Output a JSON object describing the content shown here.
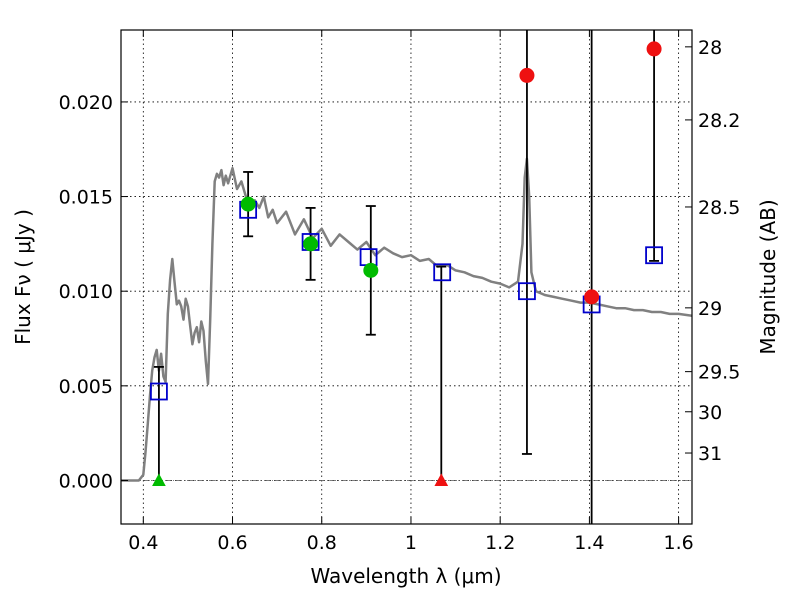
{
  "chart_data": {
    "type": "scatter",
    "xlabel": "Wavelength  λ (μm)",
    "ylabel": "Flux  Fν  ( μJy )",
    "ylabel_right": "Magnitude (AB)",
    "xlim": [
      0.35,
      1.63
    ],
    "ylim": [
      -0.0023,
      0.0238
    ],
    "grid": true,
    "x_ticks": [
      {
        "value": 0.4,
        "label": "0.4"
      },
      {
        "value": 0.6,
        "label": "0.6"
      },
      {
        "value": 0.8,
        "label": "0.8"
      },
      {
        "value": 1.0,
        "label": "1"
      },
      {
        "value": 1.2,
        "label": "1.2"
      },
      {
        "value": 1.4,
        "label": "1.4"
      },
      {
        "value": 1.6,
        "label": "1.6"
      }
    ],
    "y_ticks": [
      {
        "value": 0.0,
        "label": "0.000"
      },
      {
        "value": 0.005,
        "label": "0.005"
      },
      {
        "value": 0.01,
        "label": "0.010"
      },
      {
        "value": 0.015,
        "label": "0.015"
      },
      {
        "value": 0.02,
        "label": "0.020"
      }
    ],
    "right_ticks": [
      {
        "label": "28",
        "flux": 0.02291
      },
      {
        "label": "28.2",
        "flux": 0.01905
      },
      {
        "label": "28.5",
        "flux": 0.01445
      },
      {
        "label": "29",
        "flux": 0.00912
      },
      {
        "label": "29.5",
        "flux": 0.00575
      },
      {
        "label": "30",
        "flux": 0.00363
      },
      {
        "label": "31",
        "flux": 0.00145
      }
    ],
    "model_sed": {
      "color": "#808080",
      "x": [
        0.35,
        0.39,
        0.4,
        0.405,
        0.41,
        0.415,
        0.42,
        0.425,
        0.43,
        0.435,
        0.44,
        0.445,
        0.45,
        0.455,
        0.46,
        0.465,
        0.47,
        0.475,
        0.48,
        0.485,
        0.49,
        0.495,
        0.5,
        0.505,
        0.51,
        0.515,
        0.52,
        0.525,
        0.53,
        0.535,
        0.54,
        0.545,
        0.55,
        0.555,
        0.56,
        0.565,
        0.57,
        0.575,
        0.58,
        0.585,
        0.59,
        0.6,
        0.61,
        0.62,
        0.63,
        0.64,
        0.65,
        0.66,
        0.67,
        0.68,
        0.69,
        0.7,
        0.72,
        0.74,
        0.76,
        0.78,
        0.8,
        0.82,
        0.84,
        0.86,
        0.88,
        0.9,
        0.92,
        0.94,
        0.96,
        0.98,
        1.0,
        1.02,
        1.04,
        1.06,
        1.08,
        1.1,
        1.12,
        1.14,
        1.16,
        1.18,
        1.2,
        1.22,
        1.24,
        1.25,
        1.255,
        1.26,
        1.265,
        1.27,
        1.28,
        1.3,
        1.32,
        1.34,
        1.36,
        1.38,
        1.4,
        1.42,
        1.44,
        1.46,
        1.48,
        1.5,
        1.52,
        1.54,
        1.56,
        1.58,
        1.6,
        1.63
      ],
      "y": [
        0.0,
        0.0,
        0.0003,
        0.0015,
        0.003,
        0.0045,
        0.0058,
        0.0065,
        0.0069,
        0.0058,
        0.0067,
        0.0055,
        0.0052,
        0.0088,
        0.0106,
        0.0117,
        0.0105,
        0.0093,
        0.0095,
        0.0092,
        0.0085,
        0.0096,
        0.0092,
        0.0082,
        0.0072,
        0.0078,
        0.0081,
        0.0073,
        0.0084,
        0.0079,
        0.0063,
        0.0051,
        0.0085,
        0.0125,
        0.0158,
        0.0162,
        0.016,
        0.0164,
        0.0156,
        0.0161,
        0.0157,
        0.0165,
        0.0154,
        0.0158,
        0.015,
        0.0146,
        0.0148,
        0.0144,
        0.015,
        0.0139,
        0.0143,
        0.0136,
        0.0142,
        0.013,
        0.0138,
        0.0128,
        0.0133,
        0.0124,
        0.013,
        0.0126,
        0.0122,
        0.0126,
        0.0119,
        0.0123,
        0.012,
        0.0118,
        0.0119,
        0.0116,
        0.0117,
        0.0113,
        0.0114,
        0.0111,
        0.011,
        0.0108,
        0.0107,
        0.0105,
        0.0104,
        0.0102,
        0.0105,
        0.0125,
        0.016,
        0.017,
        0.015,
        0.011,
        0.01,
        0.0098,
        0.0097,
        0.0096,
        0.0095,
        0.0094,
        0.0094,
        0.0093,
        0.0092,
        0.0091,
        0.0091,
        0.009,
        0.009,
        0.0089,
        0.0089,
        0.0088,
        0.0088,
        0.0087
      ]
    },
    "model_fluxes": {
      "color": "#0000cc",
      "points": [
        {
          "x": 0.435,
          "y": 0.0047
        },
        {
          "x": 0.635,
          "y": 0.0143
        },
        {
          "x": 0.775,
          "y": 0.0126
        },
        {
          "x": 0.905,
          "y": 0.0118
        },
        {
          "x": 1.07,
          "y": 0.011
        },
        {
          "x": 1.26,
          "y": 0.01
        },
        {
          "x": 1.405,
          "y": 0.0093
        },
        {
          "x": 1.545,
          "y": 0.0119
        }
      ]
    },
    "observed": {
      "points": [
        {
          "x": 0.635,
          "y": 0.0146,
          "err_low": 0.0129,
          "err_high": 0.0163,
          "color": "#00bb00"
        },
        {
          "x": 0.775,
          "y": 0.0125,
          "err_low": 0.0106,
          "err_high": 0.0144,
          "color": "#00bb00"
        },
        {
          "x": 0.91,
          "y": 0.0111,
          "err_low": 0.0077,
          "err_high": 0.0145,
          "color": "#00bb00"
        },
        {
          "x": 1.26,
          "y": 0.0214,
          "err_low": 0.0014,
          "err_high": 0.03,
          "color": "#ee1111"
        },
        {
          "x": 1.405,
          "y": 0.0097,
          "err_low": -0.005,
          "err_high": 0.03,
          "color": "#ee1111"
        },
        {
          "x": 1.545,
          "y": 0.0228,
          "err_low": 0.0116,
          "err_high": 0.03,
          "color": "#ee1111"
        }
      ]
    },
    "upper_limits": {
      "points": [
        {
          "x": 0.435,
          "y": 0.0,
          "err_high": 0.006,
          "color": "#00bb00"
        },
        {
          "x": 1.068,
          "y": 0.0,
          "err_high": 0.0113,
          "color": "#ee1111"
        }
      ]
    },
    "zero_line": 0.0
  }
}
